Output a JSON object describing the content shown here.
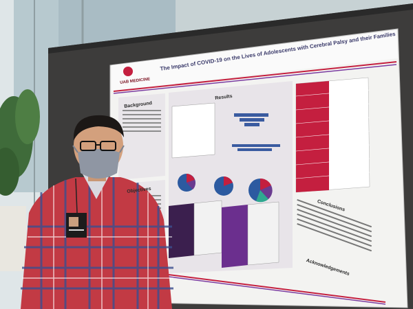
{
  "poster": {
    "title": "The Impact of COVID-19 on the Lives of Adolescents with Cerebral Palsy and their Families",
    "logo": "UAB MEDICINE",
    "sections": {
      "results": "Results",
      "background": "Background",
      "objectives": "Objectives",
      "conclusions": "Conclusions",
      "acknowledgements": "Acknowledgements"
    }
  },
  "colors": {
    "poster_bg": "#f4f4f2",
    "board": "#3c3b3a",
    "accent_red": "#c41f3f",
    "accent_purple": "#5a2e78",
    "shirt_red": "#b8303a",
    "shirt_blue": "#3b4f8f"
  }
}
